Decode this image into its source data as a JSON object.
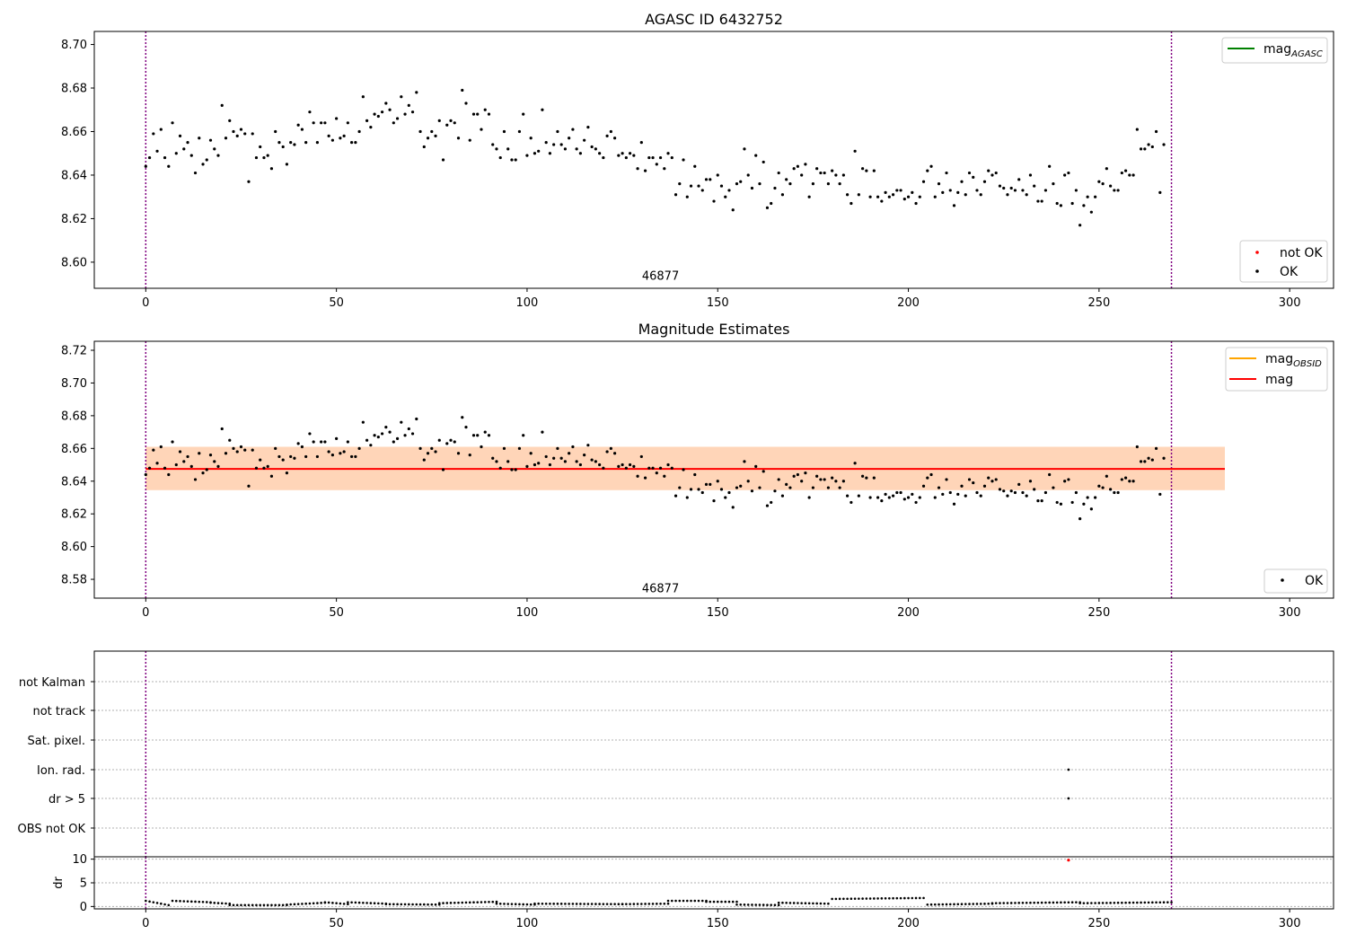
{
  "page_size": "1500x1050",
  "chart_data": [
    {
      "id": "top",
      "type": "scatter",
      "title": "AGASC ID 6432752",
      "xlim": [
        -13.5,
        311.5
      ],
      "ylim": [
        8.588,
        8.706
      ],
      "xticks": [
        0,
        50,
        100,
        150,
        200,
        250,
        300
      ],
      "yticks": [
        8.6,
        8.62,
        8.64,
        8.66,
        8.68,
        8.7
      ],
      "ytick_format": 2,
      "grid": false,
      "vlines": [
        0,
        269
      ],
      "vline_color": "#800080",
      "annotation": {
        "text": "46877",
        "x": 135,
        "y": 8.592
      },
      "legend_upper": {
        "placement": "top-right",
        "entries": [
          {
            "label": "mag",
            "subscript": "AGASC",
            "color": "#008000",
            "kind": "line"
          }
        ]
      },
      "legend_lower": {
        "placement": "bottom-right",
        "entries": [
          {
            "label": "not OK",
            "color": "#ff0000",
            "kind": "dot"
          },
          {
            "label": "OK",
            "color": "#000000",
            "kind": "dot"
          }
        ]
      },
      "series_ref": "mag_points",
      "series": [
        {
          "name": "OK",
          "color": "#000000"
        }
      ]
    },
    {
      "id": "mid",
      "type": "scatter",
      "title": "Magnitude Estimates",
      "xlim": [
        -13.5,
        311.5
      ],
      "ylim": [
        8.5685,
        8.7255
      ],
      "xticks": [
        0,
        50,
        100,
        150,
        200,
        250,
        300
      ],
      "yticks": [
        8.58,
        8.6,
        8.62,
        8.64,
        8.66,
        8.68,
        8.7,
        8.72
      ],
      "ytick_format": 2,
      "grid": false,
      "vlines": [
        0,
        269
      ],
      "vline_color": "#800080",
      "annotation": {
        "text": "46877",
        "x": 135,
        "y": 8.572
      },
      "bands": [
        {
          "x": [
            0,
            283
          ],
          "y": [
            8.6345,
            8.661
          ],
          "color": "#ffb6c1",
          "opacity": 0.4
        },
        {
          "x": [
            0,
            283
          ],
          "y": [
            8.6345,
            8.661
          ],
          "color": "#ffa500",
          "opacity": 0.2
        }
      ],
      "hlines": [
        {
          "y": 8.6475,
          "x": [
            0,
            283
          ],
          "color": "#ff0000"
        }
      ],
      "legend_upper": {
        "placement": "top-right",
        "entries": [
          {
            "label": "mag",
            "subscript": "OBSID",
            "color": "#ffa500",
            "kind": "line"
          },
          {
            "label": "mag",
            "color": "#ff0000",
            "kind": "line"
          }
        ]
      },
      "legend_lower": {
        "placement": "bottom-right",
        "entries": [
          {
            "label": "OK",
            "color": "#000000",
            "kind": "dot"
          }
        ]
      },
      "series_ref": "mag_points",
      "series": [
        {
          "name": "OK",
          "color": "#000000"
        }
      ]
    },
    {
      "id": "flags",
      "type": "scatter",
      "xlim": [
        -13.5,
        311.5
      ],
      "categories": [
        "not Kalman",
        "not track",
        "Sat. pixel.",
        "Ion. rad.",
        "dr > 5",
        "OBS not OK"
      ],
      "grid": true,
      "vlines": [
        0,
        269
      ],
      "vline_color": "#800080",
      "points": [
        {
          "x": 242,
          "category": "Ion. rad."
        },
        {
          "x": 242,
          "category": "dr > 5"
        }
      ]
    },
    {
      "id": "dr",
      "type": "scatter",
      "ylabel": "dr",
      "xlim": [
        -13.5,
        311.5
      ],
      "ylim": [
        -0.5,
        10.5
      ],
      "xticks": [
        0,
        50,
        100,
        150,
        200,
        250,
        300
      ],
      "yticks": [
        0,
        5,
        10
      ],
      "grid": true,
      "vlines": [
        0,
        269
      ],
      "vline_color": "#800080",
      "outlier": {
        "x": 242,
        "y": 9.8,
        "color": "#ff0000"
      },
      "segments": [
        {
          "x": [
            0,
            6
          ],
          "y": [
            1.2,
            0.3
          ]
        },
        {
          "x": [
            7,
            17
          ],
          "y": [
            1.2,
            0.9
          ]
        },
        {
          "x": [
            17,
            22
          ],
          "y": [
            0.8,
            0.6
          ]
        },
        {
          "x": [
            22,
            37
          ],
          "y": [
            0.3,
            0.3
          ]
        },
        {
          "x": [
            37,
            47
          ],
          "y": [
            0.4,
            0.8
          ]
        },
        {
          "x": [
            47,
            53
          ],
          "y": [
            0.9,
            0.5
          ]
        },
        {
          "x": [
            53,
            63
          ],
          "y": [
            0.9,
            0.6
          ]
        },
        {
          "x": [
            63,
            77
          ],
          "y": [
            0.5,
            0.4
          ]
        },
        {
          "x": [
            77,
            92
          ],
          "y": [
            0.7,
            1.0
          ]
        },
        {
          "x": [
            92,
            102
          ],
          "y": [
            0.6,
            0.4
          ]
        },
        {
          "x": [
            102,
            125
          ],
          "y": [
            0.6,
            0.5
          ]
        },
        {
          "x": [
            125,
            137
          ],
          "y": [
            0.5,
            0.6
          ]
        },
        {
          "x": [
            137,
            147
          ],
          "y": [
            1.2,
            1.2
          ]
        },
        {
          "x": [
            147,
            155
          ],
          "y": [
            1.0,
            1.0
          ]
        },
        {
          "x": [
            155,
            166
          ],
          "y": [
            0.4,
            0.3
          ]
        },
        {
          "x": [
            166,
            179
          ],
          "y": [
            0.8,
            0.6
          ]
        },
        {
          "x": [
            180,
            204
          ],
          "y": [
            1.6,
            1.8
          ]
        },
        {
          "x": [
            205,
            222
          ],
          "y": [
            0.4,
            0.6
          ]
        },
        {
          "x": [
            222,
            245
          ],
          "y": [
            0.7,
            0.9
          ]
        },
        {
          "x": [
            245,
            269
          ],
          "y": [
            0.7,
            0.9
          ]
        }
      ]
    }
  ],
  "mag_points": {
    "x_start": 0,
    "values": [
      8.644,
      8.648,
      8.659,
      8.651,
      8.661,
      8.648,
      8.644,
      8.664,
      8.65,
      8.658,
      8.652,
      8.655,
      8.649,
      8.641,
      8.657,
      8.645,
      8.647,
      8.656,
      8.652,
      8.649,
      8.672,
      8.657,
      8.665,
      8.66,
      8.658,
      8.661,
      8.659,
      8.637,
      8.659,
      8.648,
      8.653,
      8.648,
      8.649,
      8.643,
      8.66,
      8.655,
      8.653,
      8.645,
      8.655,
      8.654,
      8.663,
      8.661,
      8.655,
      8.669,
      8.664,
      8.655,
      8.664,
      8.664,
      8.658,
      8.656,
      8.666,
      8.657,
      8.658,
      8.664,
      8.655,
      8.655,
      8.66,
      8.676,
      8.665,
      8.662,
      8.668,
      8.667,
      8.669,
      8.673,
      8.67,
      8.664,
      8.666,
      8.676,
      8.668,
      8.672,
      8.669,
      8.678,
      8.66,
      8.653,
      8.657,
      8.66,
      8.658,
      8.665,
      8.647,
      8.663,
      8.665,
      8.664,
      8.657,
      8.679,
      8.673,
      8.656,
      8.668,
      8.668,
      8.661,
      8.67,
      8.668,
      8.654,
      8.652,
      8.648,
      8.66,
      8.652,
      8.647,
      8.647,
      8.66,
      8.668,
      8.649,
      8.657,
      8.65,
      8.651,
      8.67,
      8.655,
      8.65,
      8.654,
      8.66,
      8.654,
      8.652,
      8.657,
      8.661,
      8.652,
      8.65,
      8.656,
      8.662,
      8.653,
      8.652,
      8.65,
      8.648,
      8.658,
      8.66,
      8.657,
      8.649,
      8.65,
      8.648,
      8.65,
      8.649,
      8.643,
      8.655,
      8.642,
      8.648,
      8.648,
      8.645,
      8.648,
      8.643,
      8.65,
      8.648,
      8.631,
      8.636,
      8.647,
      8.63,
      8.635,
      8.644,
      8.635,
      8.633,
      8.638,
      8.638,
      8.628,
      8.64,
      8.635,
      8.63,
      8.633,
      8.624,
      8.636,
      8.637,
      8.652,
      8.64,
      8.634,
      8.649,
      8.636,
      8.646,
      8.625,
      8.627,
      8.634,
      8.641,
      8.631,
      8.638,
      8.636,
      8.643,
      8.644,
      8.64,
      8.645,
      8.63,
      8.636,
      8.643,
      8.641,
      8.641,
      8.636,
      8.642,
      8.64,
      8.636,
      8.64,
      8.631,
      8.627,
      8.651,
      8.631,
      8.643,
      8.642,
      8.63,
      8.642,
      8.63,
      8.628,
      8.632,
      8.63,
      8.631,
      8.633,
      8.633,
      8.629,
      8.63,
      8.632,
      8.627,
      8.63,
      8.637,
      8.642,
      8.644,
      8.63,
      8.636,
      8.632,
      8.641,
      8.633,
      8.626,
      8.632,
      8.637,
      8.631,
      8.641,
      8.639,
      8.633,
      8.631,
      8.637,
      8.642,
      8.64,
      8.641,
      8.635,
      8.634,
      8.631,
      8.634,
      8.633,
      8.638,
      8.633,
      8.631,
      8.64,
      8.635,
      8.628,
      8.628,
      8.633,
      8.644,
      8.636,
      8.627,
      8.626,
      8.64,
      8.641,
      8.627,
      8.633,
      8.617,
      8.626,
      8.63,
      8.623,
      8.63,
      8.637,
      8.636,
      8.643,
      8.635,
      8.633,
      8.633,
      8.641,
      8.642,
      8.64,
      8.64,
      8.661,
      8.652,
      8.652,
      8.654,
      8.653,
      8.66,
      8.632,
      8.654
    ]
  }
}
